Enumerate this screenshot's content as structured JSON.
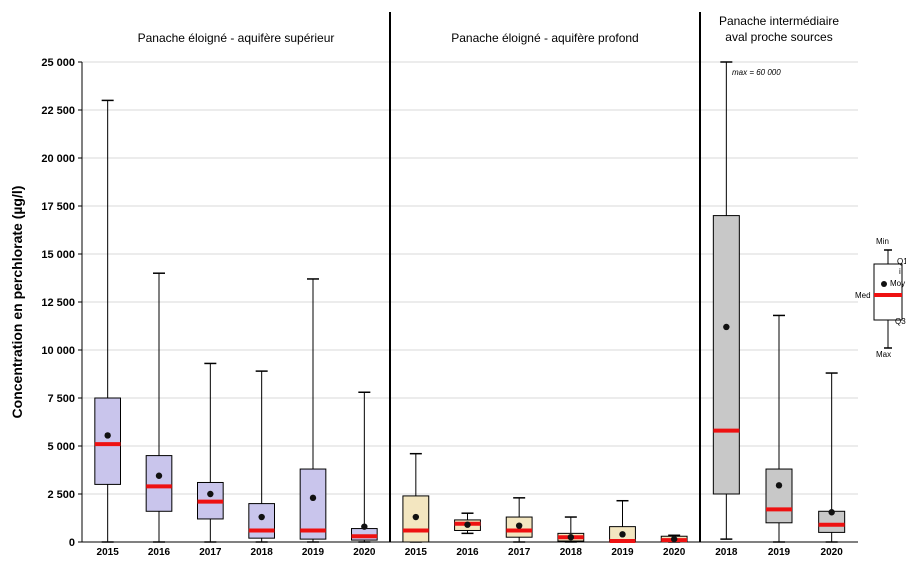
{
  "chart_data": {
    "type": "boxplot",
    "ylabel": "Concentration en perchlorate  (µg/l)",
    "ylim": [
      0,
      25000
    ],
    "yticks": [
      0,
      2500,
      5000,
      7500,
      10000,
      12500,
      15000,
      17500,
      20000,
      22500,
      25000
    ],
    "ytick_labels": [
      "0",
      "2 500",
      "5 000",
      "7 500",
      "10 000",
      "12 500",
      "15 000",
      "17 500",
      "20 000",
      "22 500",
      "25 000"
    ],
    "grid": true,
    "panels": [
      {
        "title": [
          "Panache éloigné - aquifère supérieur"
        ],
        "box_color": "#c9c5ec",
        "boxes": [
          {
            "category": "2015",
            "min": 0,
            "q1": 3000,
            "median": 5100,
            "mean": 5550,
            "q3": 7500,
            "max": 23000
          },
          {
            "category": "2016",
            "min": 0,
            "q1": 1600,
            "median": 2900,
            "mean": 3450,
            "q3": 4500,
            "max": 14000
          },
          {
            "category": "2017",
            "min": 0,
            "q1": 1200,
            "median": 2100,
            "mean": 2500,
            "q3": 3100,
            "max": 9300
          },
          {
            "category": "2018",
            "min": 0,
            "q1": 200,
            "median": 600,
            "mean": 1300,
            "q3": 2000,
            "max": 8900
          },
          {
            "category": "2019",
            "min": 0,
            "q1": 150,
            "median": 600,
            "mean": 2300,
            "q3": 3800,
            "max": 13700
          },
          {
            "category": "2020",
            "min": 0,
            "q1": 100,
            "median": 300,
            "mean": 800,
            "q3": 700,
            "max": 7800
          }
        ]
      },
      {
        "title": [
          "Panache éloigné - aquifère profond"
        ],
        "box_color": "#f3e6c0",
        "boxes": [
          {
            "category": "2015",
            "min": 0,
            "q1": 0,
            "median": 600,
            "mean": 1300,
            "q3": 2400,
            "max": 4600
          },
          {
            "category": "2016",
            "min": 450,
            "q1": 600,
            "median": 950,
            "mean": 900,
            "q3": 1150,
            "max": 1500
          },
          {
            "category": "2017",
            "min": 0,
            "q1": 250,
            "median": 600,
            "mean": 850,
            "q3": 1300,
            "max": 2300
          },
          {
            "category": "2018",
            "min": 0,
            "q1": 50,
            "median": 250,
            "mean": 250,
            "q3": 450,
            "max": 1300
          },
          {
            "category": "2019",
            "min": 0,
            "q1": 0,
            "median": 50,
            "mean": 400,
            "q3": 800,
            "max": 2150
          },
          {
            "category": "2020",
            "min": 0,
            "q1": 0,
            "median": 100,
            "mean": 150,
            "q3": 300,
            "max": 350
          }
        ]
      },
      {
        "title": [
          "Panache intermédiaire",
          "aval proche sources"
        ],
        "box_color": "#c8c8c8",
        "annotation": "max = 60 000",
        "boxes": [
          {
            "category": "2018",
            "min": 150,
            "q1": 2500,
            "median": 5800,
            "mean": 11200,
            "q3": 17000,
            "max": 25000
          },
          {
            "category": "2019",
            "min": 0,
            "q1": 1000,
            "median": 1700,
            "mean": 2950,
            "q3": 3800,
            "max": 11800
          },
          {
            "category": "2020",
            "min": 0,
            "q1": 500,
            "median": 900,
            "mean": 1550,
            "q3": 1600,
            "max": 8800
          }
        ]
      }
    ],
    "legend": {
      "labels": {
        "min": "Min",
        "q1": "Q1",
        "mean": "Moy",
        "median": "Med",
        "q3": "Q3",
        "max": "Max"
      },
      "q1_sub": "i"
    },
    "colors": {
      "median": "#ee1111",
      "mean": "#111111",
      "axis": "#000000",
      "grid": "#d9d9d9"
    }
  }
}
